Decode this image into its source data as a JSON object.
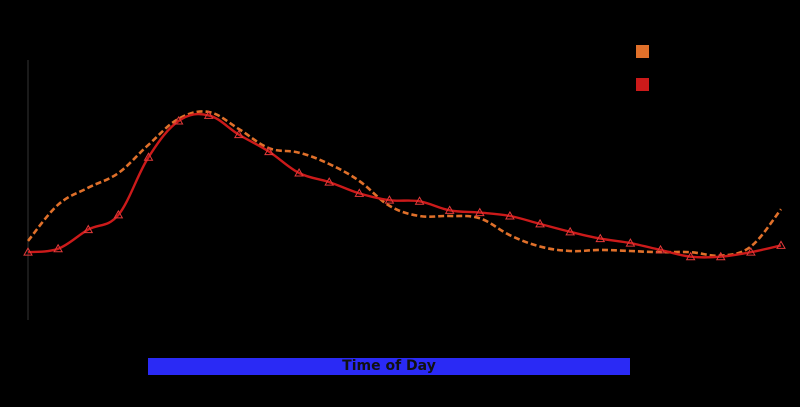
{
  "chart_data": {
    "type": "line",
    "title": "",
    "xlabel": "Time of Day",
    "ylabel": "",
    "x": [
      0,
      1,
      2,
      3,
      4,
      5,
      6,
      7,
      8,
      9,
      10,
      11,
      12,
      13,
      14,
      15,
      16,
      17,
      18,
      19,
      20,
      21,
      22,
      23,
      24,
      25
    ],
    "series": [
      {
        "name": "",
        "color": "#e0702a",
        "style": "dashed",
        "markers": false,
        "values": [
          10.0,
          13.2,
          14.7,
          16.0,
          18.5,
          20.8,
          21.4,
          19.9,
          18.2,
          17.8,
          16.8,
          15.3,
          13.1,
          12.2,
          12.2,
          12.0,
          10.5,
          9.5,
          9.1,
          9.2,
          9.1,
          9.0,
          9.0,
          8.7,
          9.5,
          12.8
        ]
      },
      {
        "name": "",
        "color": "#cc1a1a",
        "style": "solid",
        "markers": true,
        "marker": "triangle",
        "values": [
          9.0,
          9.3,
          11.0,
          12.3,
          17.4,
          20.6,
          21.1,
          19.4,
          17.9,
          16.0,
          15.2,
          14.2,
          13.6,
          13.5,
          12.7,
          12.5,
          12.2,
          11.5,
          10.8,
          10.2,
          9.8,
          9.2,
          8.6,
          8.6,
          9.0,
          9.6
        ]
      }
    ],
    "ylim": [
      3,
      26
    ],
    "grid": false,
    "legend_position": "top-right"
  }
}
